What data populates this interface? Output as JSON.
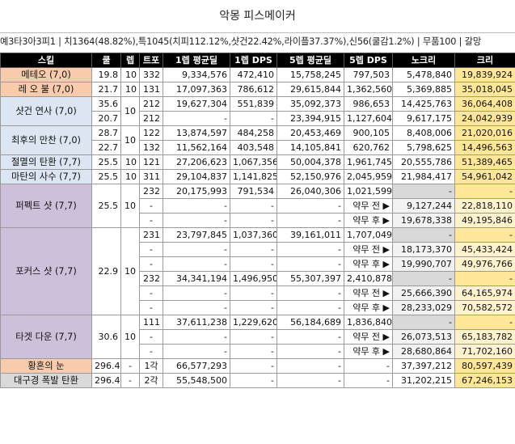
{
  "title": "악몽 피스메이커",
  "info": "예3타3아3피1 | 치1364(48.82%),특1045(치피112.12%,샷건22.42%,라이플37.37%),신56(쿨감1.2%) | 무품100 | 갈망",
  "headers": [
    "스킬",
    "쿨",
    "렙",
    "트포",
    "1렙 평균딜",
    "1렙 DPS",
    "5렙 평균딜",
    "5렙 DPS",
    "노크리",
    "크리"
  ],
  "rows": [
    {
      "skill": "메테오 (7,0)",
      "cool": "19.8",
      "lv": "10",
      "tri": "332",
      "avg1": "9,334,576",
      "dps1": "472,410",
      "avg5": "15,758,245",
      "dps5": "797,503",
      "nocrit": "5,478,840",
      "crit": "19,839,924"
    },
    {
      "skill": "레 오 불 (7,0)",
      "cool": "21.7",
      "lv": "10",
      "tri": "131",
      "avg1": "17,097,363",
      "dps1": "786,612",
      "avg5": "29,615,844",
      "dps5": "1,362,560",
      "nocrit": "5,369,885",
      "crit": "35,018,045"
    },
    {
      "skill": "샷건 연사 (7,0)",
      "cool": "35.6",
      "lv": "10",
      "tri": "212",
      "avg1": "19,627,304",
      "dps1": "551,839",
      "avg5": "35,092,373",
      "dps5": "986,653",
      "nocrit": "14,425,763",
      "crit": "36,064,408"
    },
    {
      "cool": "20.7",
      "tri": "212",
      "avg1": "-",
      "dps1": "-",
      "avg5": "23,394,915",
      "dps5": "1,127,604",
      "nocrit": "9,617,175",
      "crit": "24,042,939"
    },
    {
      "skill": "최후의 만찬 (7,0)",
      "cool": "28.7",
      "lv": "10",
      "tri": "122",
      "avg1": "13,874,597",
      "dps1": "484,258",
      "avg5": "20,453,469",
      "dps5": "900,105",
      "nocrit": "8,408,006",
      "crit": "21,020,016"
    },
    {
      "cool": "22.7",
      "tri": "132",
      "avg1": "11,562,164",
      "dps1": "403,548",
      "avg5": "14,105,841",
      "dps5": "620,762",
      "nocrit": "5,798,625",
      "crit": "14,496,563"
    },
    {
      "skill": "절멸의 탄환 (7,7)",
      "cool": "25.5",
      "lv": "10",
      "tri": "121",
      "avg1": "27,206,623",
      "dps1": "1,067,356",
      "avg5": "50,004,378",
      "dps5": "1,961,745",
      "nocrit": "20,555,786",
      "crit": "51,389,465"
    },
    {
      "skill": "마탄의 사수 (7,7)",
      "cool": "25.5",
      "lv": "10",
      "tri": "311",
      "avg1": "29,104,837",
      "dps1": "1,141,825",
      "avg5": "52,150,976",
      "dps5": "2,045,959",
      "nocrit": "21,984,417",
      "crit": "54,961,042"
    },
    {
      "skill": "퍼펙트 샷 (7,7)",
      "cool": "25.5",
      "lv": "10",
      "tri": "232",
      "avg1": "20,175,993",
      "dps1": "791,534",
      "avg5": "26,040,306",
      "dps5": "1,021,599",
      "nocrit": "-",
      "crit": "-"
    },
    {
      "tri": "-",
      "avg1": "-",
      "dps1": "-",
      "avg5": "-",
      "dps5": "약무 전 ▶",
      "nocrit": "9,127,244",
      "crit": "22,818,110"
    },
    {
      "tri": "-",
      "avg1": "-",
      "dps1": "-",
      "avg5": "-",
      "dps5": "약무 후 ▶",
      "nocrit": "19,678,338",
      "crit": "49,195,846"
    },
    {
      "skill": "포커스 샷 (7,7)",
      "cool": "22.9",
      "lv": "10",
      "tri": "231",
      "avg1": "23,797,845",
      "dps1": "1,037,360",
      "avg5": "39,161,011",
      "dps5": "1,707,049",
      "nocrit": "-",
      "crit": "-"
    },
    {
      "tri": "-",
      "avg1": "-",
      "dps1": "-",
      "avg5": "-",
      "dps5": "약무 전 ▶",
      "nocrit": "18,173,370",
      "crit": "45,433,424"
    },
    {
      "tri": "-",
      "avg1": "-",
      "dps1": "-",
      "avg5": "-",
      "dps5": "약무 후 ▶",
      "nocrit": "19,990,707",
      "crit": "49,976,766"
    },
    {
      "tri": "232",
      "avg1": "34,341,194",
      "dps1": "1,496,950",
      "avg5": "55,307,397",
      "dps5": "2,410,878",
      "nocrit": "-",
      "crit": "-"
    },
    {
      "tri": "-",
      "avg1": "-",
      "dps1": "-",
      "avg5": "-",
      "dps5": "약무 전 ▶",
      "nocrit": "25,666,390",
      "crit": "64,165,974"
    },
    {
      "tri": "-",
      "avg1": "-",
      "dps1": "-",
      "avg5": "-",
      "dps5": "약무 후 ▶",
      "nocrit": "28,233,029",
      "crit": "70,582,572"
    },
    {
      "skill": "타겟 다운 (7,7)",
      "cool": "30.6",
      "lv": "10",
      "tri": "111",
      "avg1": "37,611,238",
      "dps1": "1,229,620",
      "avg5": "56,184,689",
      "dps5": "1,836,840",
      "nocrit": "-",
      "crit": "-"
    },
    {
      "tri": "-",
      "avg1": "-",
      "dps1": "-",
      "avg5": "-",
      "dps5": "약무 전 ▶",
      "nocrit": "26,073,513",
      "crit": "65,183,782"
    },
    {
      "tri": "-",
      "avg1": "-",
      "dps1": "-",
      "avg5": "-",
      "dps5": "약무 후 ▶",
      "nocrit": "28,680,864",
      "crit": "71,702,160"
    },
    {
      "skill": "황혼의 눈",
      "cool": "296.4",
      "lv": "-",
      "tri": "1각",
      "avg1": "66,577,293",
      "dps1": "-",
      "avg5": "-",
      "dps5": "-",
      "nocrit": "37,397,212",
      "crit": "80,597,439"
    },
    {
      "skill": "대구경 폭발 탄환",
      "cool": "296.4",
      "lv": "-",
      "tri": "2각",
      "avg1": "55,548,500",
      "dps1": "-",
      "avg5": "-",
      "dps5": "-",
      "nocrit": "31,202,215",
      "crit": "67,246,153"
    }
  ]
}
